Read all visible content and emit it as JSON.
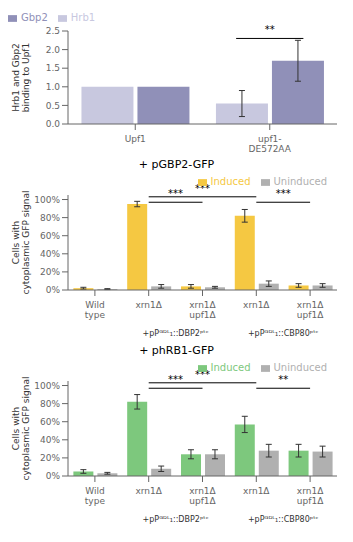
{
  "chart_data": [
    {
      "type": "bar",
      "ylabel": "Hrb1 and Gbp2 binding to Upf1",
      "categories": [
        "Upf1",
        "upf1-\nDE572AA"
      ],
      "series": [
        {
          "name": "Hrb1",
          "color": "#c8c8df",
          "values": [
            1.0,
            0.55
          ],
          "errors": [
            0.0,
            0.35
          ]
        },
        {
          "name": "Gbp2",
          "color": "#9090b8",
          "values": [
            1.0,
            1.7
          ],
          "errors": [
            0.0,
            0.55
          ]
        }
      ],
      "ylim": [
        0,
        2.5
      ],
      "yticks": [
        {
          "value": 0,
          "label": "0.0"
        },
        0.5,
        {
          "value": 1,
          "label": "1.0"
        },
        1.5,
        {
          "value": 2,
          "label": "2.0"
        },
        2.5
      ],
      "legend": "upper left",
      "grid": false,
      "annotations": [
        {
          "text": "**",
          "from": 1,
          "to": 1,
          "y": 2.3
        }
      ]
    },
    {
      "type": "bar",
      "title": "+ pGBP2-GFP",
      "ylabel": "Cells with cytoplasmic GFP signal",
      "categories": [
        "Wild\ntype",
        "xrn1Δ",
        "xrn1Δ\nupf1Δ",
        "xrn1Δ",
        "xrn1Δ\nupf1Δ"
      ],
      "series": [
        {
          "name": "Induced",
          "color": "#f5c842",
          "values": [
            2,
            95,
            4,
            82,
            5
          ],
          "errors": [
            1,
            3,
            2,
            7,
            2
          ]
        },
        {
          "name": "Uninduced",
          "color": "#b0b0b0",
          "values": [
            1,
            4,
            3,
            7,
            5
          ],
          "errors": [
            0.5,
            2,
            1,
            3,
            2
          ]
        }
      ],
      "ylim": [
        0,
        105
      ],
      "yticks": [
        {
          "value": 0,
          "label": "0%"
        },
        {
          "value": 20,
          "label": "20%"
        },
        {
          "value": 40,
          "label": "40%"
        },
        {
          "value": 60,
          "label": "60%"
        },
        {
          "value": 80,
          "label": "80%"
        },
        {
          "value": 100,
          "label": "100%"
        }
      ],
      "legend": "upper right",
      "grid": false,
      "groups": [
        {
          "text": "+pPᴳᴰᴸ₁::DBP2ᵖᵗᶜ",
          "from": 1,
          "to": 2
        },
        {
          "text": "+pPᴳᴰᴸ₁::CBP80ᵖᵗᶜ",
          "from": 3,
          "to": 4
        }
      ],
      "annotations": [
        {
          "text": "***",
          "from": 1,
          "to": 3,
          "y": 103
        },
        {
          "text": "***",
          "from": 1,
          "to": 2,
          "y": 97
        },
        {
          "text": "***",
          "from": 3,
          "to": 4,
          "y": 97
        }
      ]
    },
    {
      "type": "bar",
      "title": "+ phRB1-GFP",
      "ylabel": "Cells with cytoplasmic GFP signal",
      "categories": [
        "Wild\ntype",
        "xrn1Δ",
        "xrn1Δ\nupf1Δ",
        "xrn1Δ",
        "xrn1Δ\nupf1Δ"
      ],
      "series": [
        {
          "name": "Induced",
          "color": "#7dc87d",
          "values": [
            5,
            82,
            24,
            57,
            28
          ],
          "errors": [
            2,
            8,
            5,
            9,
            7
          ]
        },
        {
          "name": "Uninduced",
          "color": "#b0b0b0",
          "values": [
            3,
            8,
            24,
            28,
            27
          ],
          "errors": [
            1,
            3,
            5,
            7,
            6
          ]
        }
      ],
      "ylim": [
        0,
        105
      ],
      "yticks": [
        {
          "value": 0,
          "label": "0%"
        },
        {
          "value": 20,
          "label": "20%"
        },
        {
          "value": 40,
          "label": "40%"
        },
        {
          "value": 60,
          "label": "60%"
        },
        {
          "value": 80,
          "label": "80%"
        },
        {
          "value": 100,
          "label": "100%"
        }
      ],
      "legend": "upper right",
      "grid": false,
      "groups": [
        {
          "text": "+pPᴳᴰᴸ₁::DBP2ᵖᵗᶜ",
          "from": 1,
          "to": 2
        },
        {
          "text": "+pPᴳᴰᴸ₁::CBP80ᵖᵗᶜ",
          "from": 3,
          "to": 4
        }
      ],
      "annotations": [
        {
          "text": "***",
          "from": 1,
          "to": 3,
          "y": 103
        },
        {
          "text": "***",
          "from": 1,
          "to": 2,
          "y": 97
        },
        {
          "text": "**",
          "from": 3,
          "to": 4,
          "y": 97
        }
      ]
    }
  ]
}
